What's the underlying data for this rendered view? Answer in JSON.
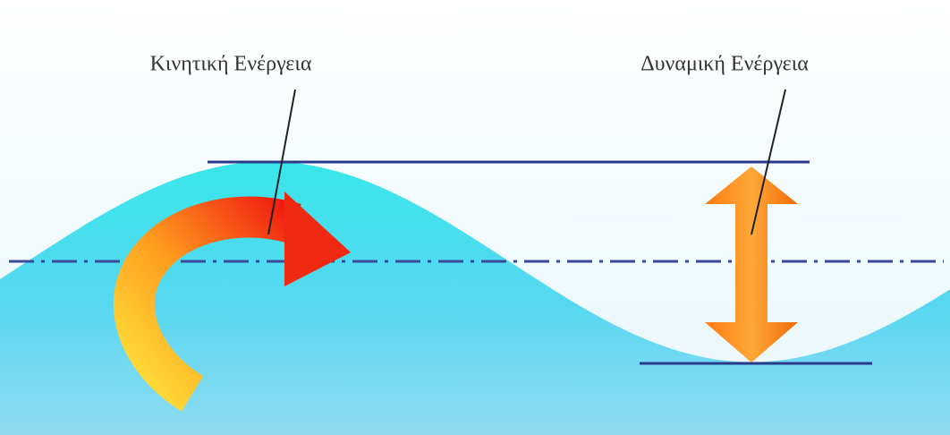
{
  "labels": {
    "kinetic": "Κινητική Ενέργεια",
    "potential": "Δυναμική Ενέργεια"
  }
}
